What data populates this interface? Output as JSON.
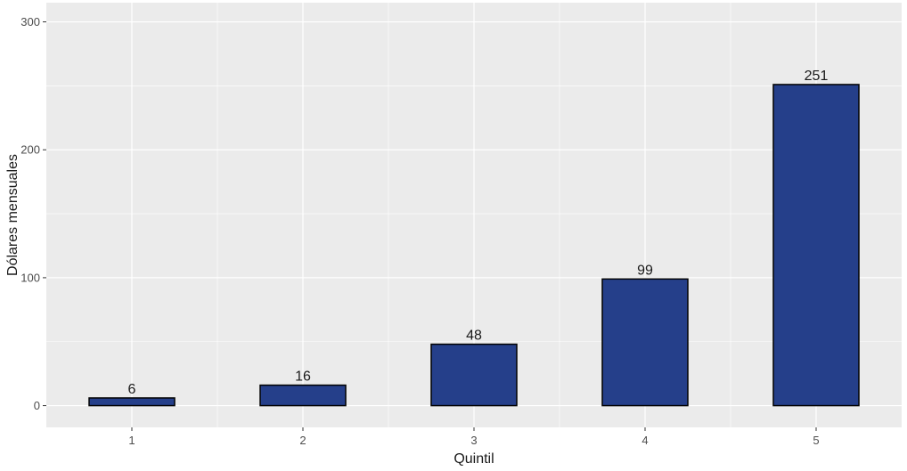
{
  "chart_data": {
    "type": "bar",
    "title": "",
    "xlabel": "Quintil",
    "ylabel": "Dólares mensuales",
    "categories": [
      "1",
      "2",
      "3",
      "4",
      "5"
    ],
    "values": [
      6,
      16,
      48,
      99,
      251
    ],
    "data_labels": [
      "6",
      "16",
      "48",
      "99",
      "251"
    ],
    "ylim": [
      -17,
      315
    ],
    "yticks": [
      0,
      100,
      200,
      300
    ],
    "ytick_labels": [
      "0",
      "100",
      "200",
      "300"
    ],
    "grid": true,
    "legend": "none",
    "colors": {
      "panel": "#ebebeb",
      "grid_major": "#ffffff",
      "bar_fill": "#253f8a",
      "bar_stroke": "#000000"
    }
  }
}
